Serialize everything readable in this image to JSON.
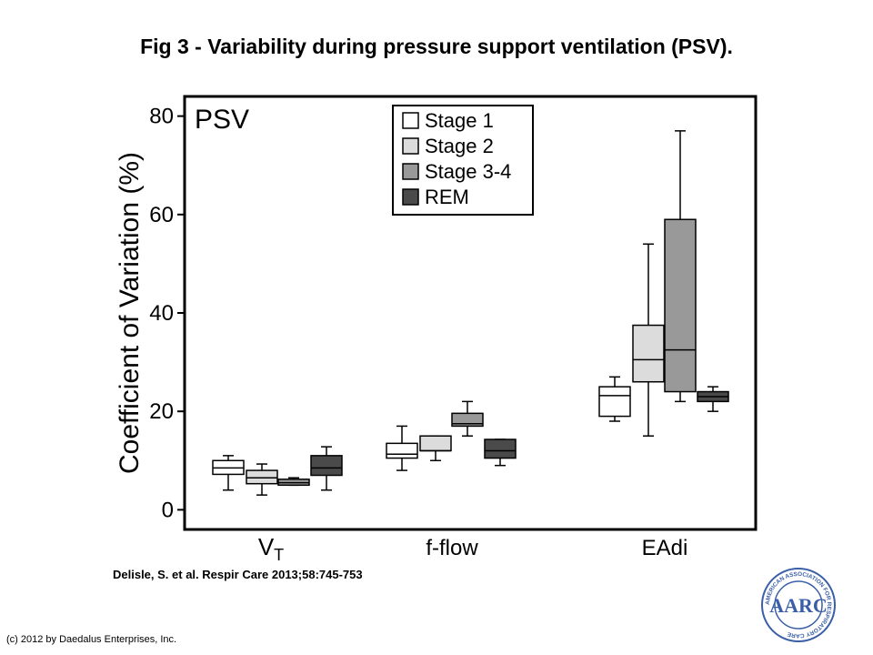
{
  "page": {
    "title": "Fig 3 - Variability during pressure support ventilation (PSV).",
    "citation": "Delisle, S. et al. Respir Care 2013;58:745-753",
    "copyright": "(c) 2012 by Daedalus Enterprises, Inc.",
    "logo": {
      "initials": "AARC",
      "ring_text": "AMERICAN ASSOCIATION FOR RESPIRATORY CARE",
      "color": "#3a5fa8"
    }
  },
  "chart_data": {
    "type": "boxplot",
    "panel_label": "PSV",
    "ylabel": "Coefficient of Variation (%)",
    "ylim": [
      -4,
      84
    ],
    "yticks": [
      0,
      20,
      40,
      60,
      80
    ],
    "categories": [
      {
        "main": "V",
        "sub": "T"
      },
      {
        "main": "f-flow",
        "sub": ""
      },
      {
        "main": "EAdi",
        "sub": ""
      }
    ],
    "legend": {
      "position": "top-center"
    },
    "series": [
      {
        "name": "Stage 1",
        "color": "#ffffff",
        "boxes": [
          {
            "whisker_low": 4,
            "q1": 7.2,
            "median": 8.5,
            "q3": 10,
            "whisker_high": 11
          },
          {
            "whisker_low": 8,
            "q1": 10.5,
            "median": 11.3,
            "q3": 13.5,
            "whisker_high": 17
          },
          {
            "whisker_low": 18,
            "q1": 19,
            "median": 23.2,
            "q3": 25,
            "whisker_high": 27
          }
        ]
      },
      {
        "name": "Stage 2",
        "color": "#dcdcdc",
        "boxes": [
          {
            "whisker_low": 3,
            "q1": 5.3,
            "median": 6.5,
            "q3": 8,
            "whisker_high": 9.3
          },
          {
            "whisker_low": 10,
            "q1": 12,
            "median": 12,
            "q3": 15,
            "whisker_high": 15
          },
          {
            "whisker_low": 15,
            "q1": 26,
            "median": 30.5,
            "q3": 37.5,
            "whisker_high": 54
          }
        ]
      },
      {
        "name": "Stage 3-4",
        "color": "#999999",
        "boxes": [
          {
            "whisker_low": 5,
            "q1": 5,
            "median": 5.5,
            "q3": 6.2,
            "whisker_high": 6.5
          },
          {
            "whisker_low": 15,
            "q1": 17,
            "median": 17.5,
            "q3": 19.6,
            "whisker_high": 22
          },
          {
            "whisker_low": 22,
            "q1": 24,
            "median": 32.5,
            "q3": 59,
            "whisker_high": 77
          }
        ]
      },
      {
        "name": "REM",
        "color": "#4a4a4a",
        "boxes": [
          {
            "whisker_low": 4,
            "q1": 7,
            "median": 8.5,
            "q3": 11,
            "whisker_high": 12.8
          },
          {
            "whisker_low": 9,
            "q1": 10.5,
            "median": 12,
            "q3": 14.3,
            "whisker_high": 14.3
          },
          {
            "whisker_low": 20,
            "q1": 22,
            "median": 23,
            "q3": 24,
            "whisker_high": 25
          }
        ]
      }
    ]
  }
}
